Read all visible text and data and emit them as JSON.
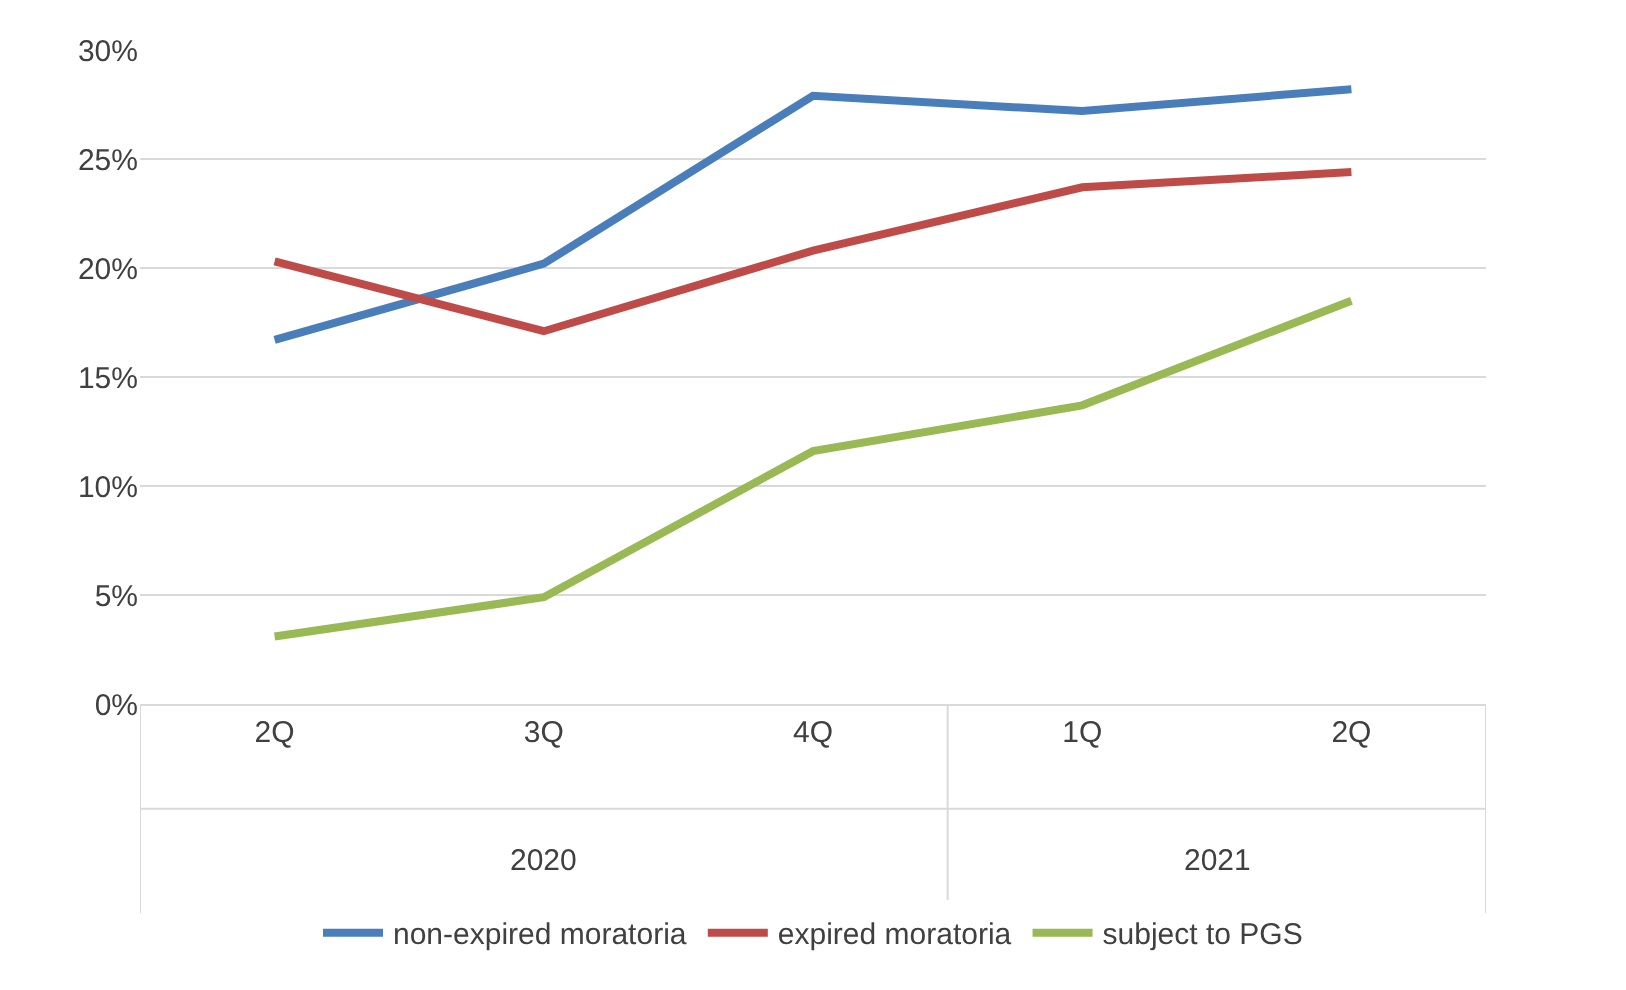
{
  "chart_data": {
    "type": "line",
    "categories": [
      "2Q",
      "3Q",
      "4Q",
      "1Q",
      "2Q"
    ],
    "series": [
      {
        "name": "non-expired moratoria",
        "color": "#4a7ebb",
        "values": [
          16.7,
          20.2,
          27.9,
          27.2,
          28.2
        ]
      },
      {
        "name": "expired moratoria",
        "color": "#be4b48",
        "values": [
          20.3,
          17.1,
          20.8,
          23.7,
          24.4
        ]
      },
      {
        "name": "subject to PGS",
        "color": "#98b954",
        "values": [
          3.1,
          4.9,
          11.6,
          13.7,
          18.5
        ]
      }
    ],
    "ylim": [
      0,
      30
    ],
    "yticks": [
      {
        "value": 0,
        "label": "0%"
      },
      {
        "value": 5,
        "label": "5%"
      },
      {
        "value": 10,
        "label": "10%"
      },
      {
        "value": 15,
        "label": "15%"
      },
      {
        "value": 20,
        "label": "20%"
      },
      {
        "value": 25,
        "label": "25%"
      },
      {
        "value": 30,
        "label": "30%"
      }
    ],
    "annotations": [
      "2020",
      "2021"
    ],
    "grid": "y",
    "legend": "bottom",
    "marker": "none",
    "line_style": "solid"
  }
}
